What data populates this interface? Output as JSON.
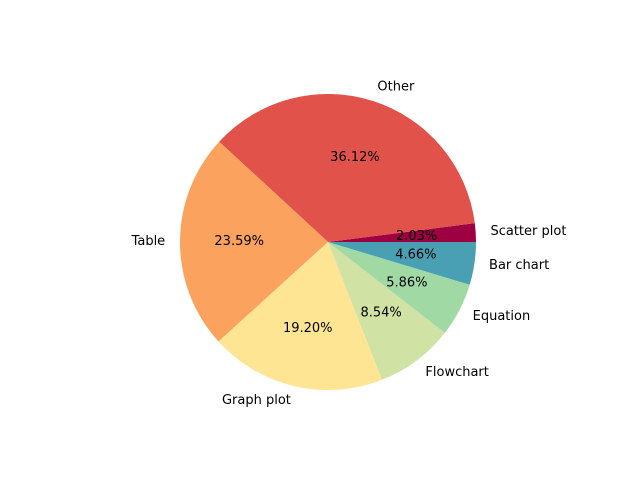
{
  "chart_data": {
    "type": "pie",
    "title": "",
    "start_angle_deg": 0,
    "direction": "counterclockwise",
    "slices": [
      {
        "label": "Scatter plot",
        "value": 2.03,
        "pct_text": "2.03%",
        "color": "#9e0142"
      },
      {
        "label": "Other",
        "value": 36.12,
        "pct_text": "36.12%",
        "color": "#e1534a"
      },
      {
        "label": "Table",
        "value": 23.59,
        "pct_text": "23.59%",
        "color": "#fba35e"
      },
      {
        "label": "Graph plot",
        "value": 19.2,
        "pct_text": "19.20%",
        "color": "#fee593"
      },
      {
        "label": "Flowchart",
        "value": 8.54,
        "pct_text": "8.54%",
        "color": "#d0e2a4"
      },
      {
        "label": "Equation",
        "value": 5.86,
        "pct_text": "5.86%",
        "color": "#a0d9a4"
      },
      {
        "label": "Bar chart",
        "value": 4.66,
        "pct_text": "4.66%",
        "color": "#48a0b2"
      }
    ]
  }
}
